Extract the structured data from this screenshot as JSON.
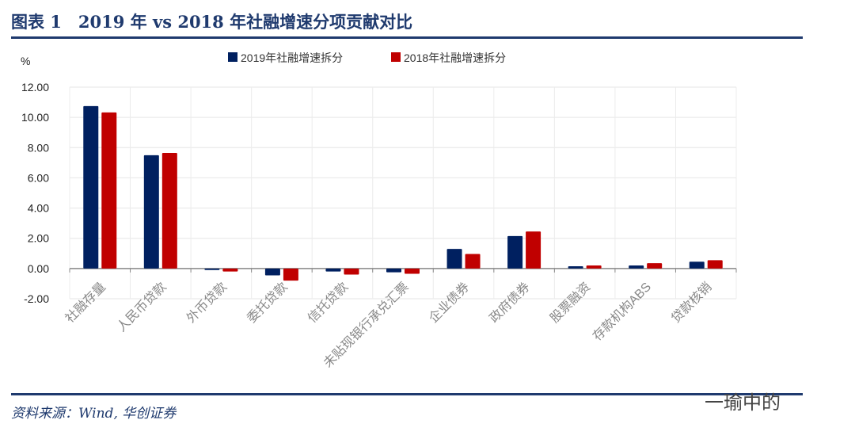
{
  "header": {
    "title": "图表 1　2019 年 vs 2018 年社融增速分项贡献对比"
  },
  "footer": {
    "source": "资料来源：Wind, 华创证券",
    "watermark": "一瑜中的"
  },
  "chart_data": {
    "type": "bar",
    "title": "2019 年 vs 2018 年社融增速分项贡献对比",
    "ylabel": "%",
    "xlabel": "",
    "ylim": [
      -2,
      12
    ],
    "yticks": [
      "12.00",
      "10.00",
      "8.00",
      "6.00",
      "4.00",
      "2.00",
      "0.00",
      "-2.00"
    ],
    "ytick_values": [
      12,
      10,
      8,
      6,
      4,
      2,
      0,
      -2
    ],
    "grid": true,
    "legend_position": "top",
    "categories": [
      "社融存量",
      "人民币贷款",
      "外币贷款",
      "委托贷款",
      "信托贷款",
      "未贴现银行承兑汇票",
      "企业债券",
      "政府债券",
      "股票融资",
      "存款机构ABS",
      "贷款核销"
    ],
    "series": [
      {
        "name": "2019年社融增速拆分",
        "color": "#002060",
        "values": [
          10.75,
          7.5,
          -0.1,
          -0.45,
          -0.2,
          -0.25,
          1.3,
          2.15,
          0.15,
          0.2,
          0.45
        ]
      },
      {
        "name": "2018年社融增速拆分",
        "color": "#c00000",
        "values": [
          10.33,
          7.65,
          -0.2,
          -0.8,
          -0.4,
          -0.35,
          0.96,
          2.45,
          0.2,
          0.35,
          0.55
        ]
      }
    ]
  }
}
